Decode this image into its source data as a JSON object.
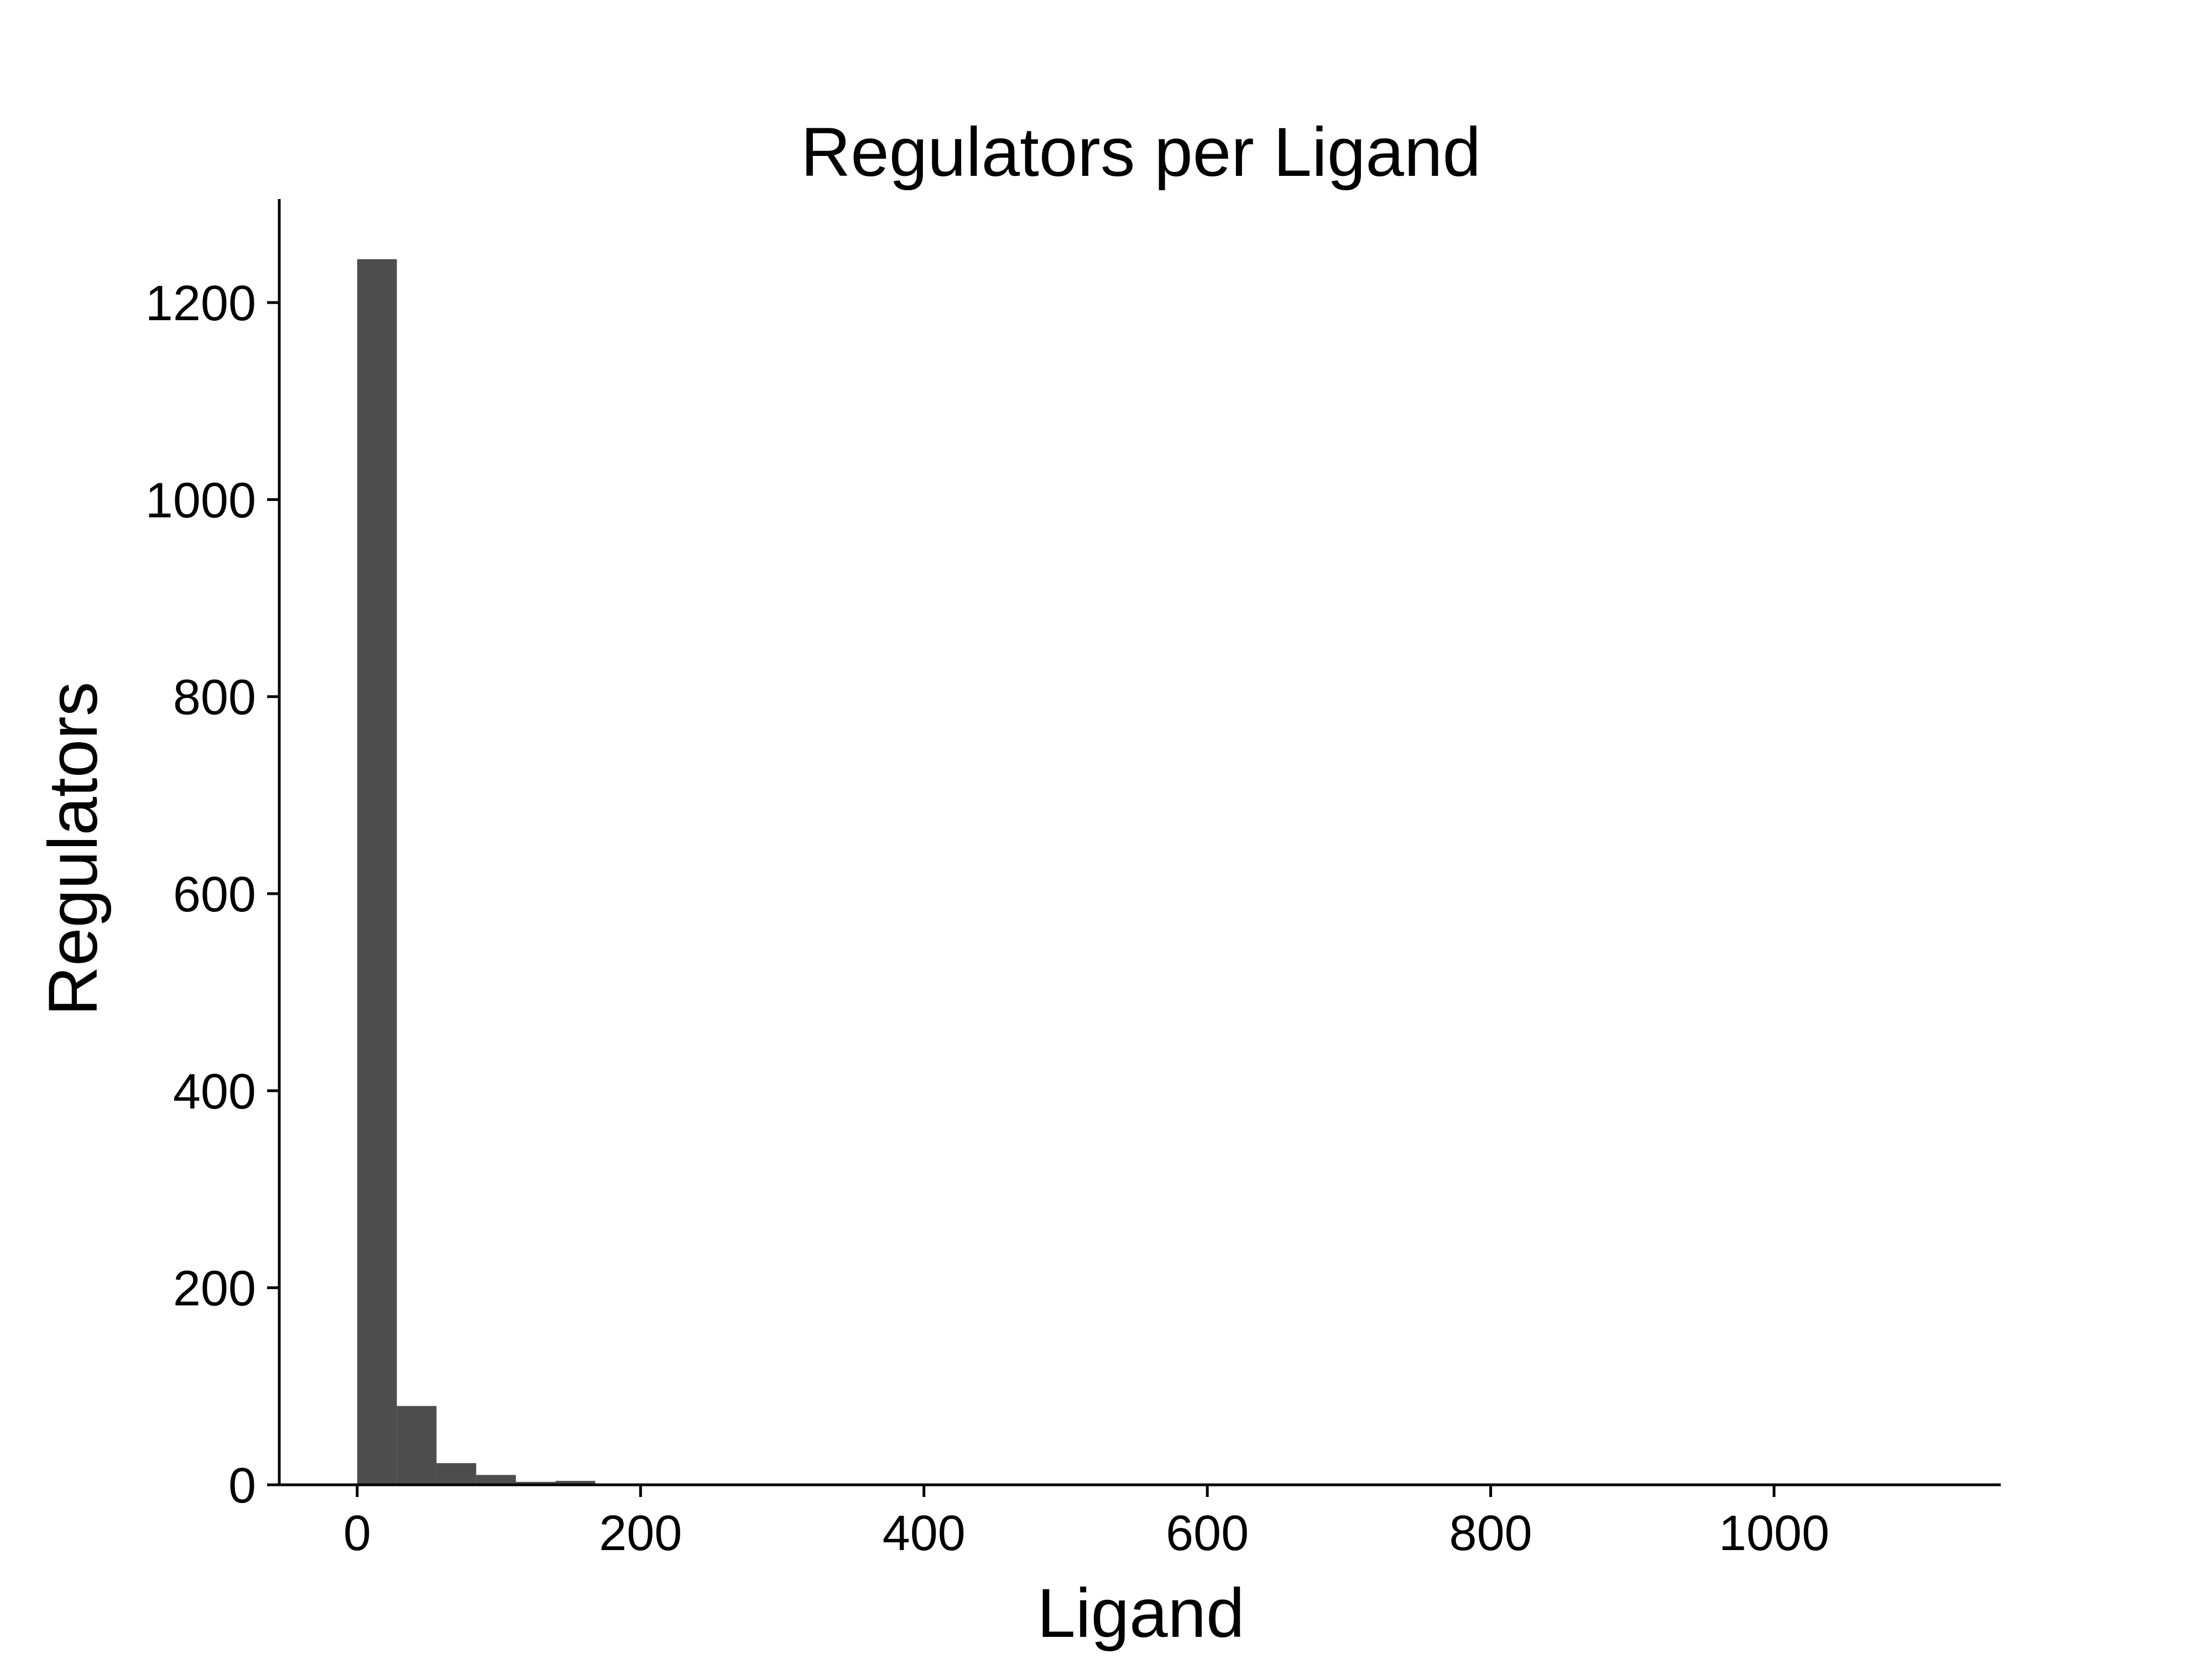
{
  "chart_data": {
    "type": "bar",
    "title": "Regulators per Ligand",
    "xlabel": "Ligand",
    "ylabel": "Regulators",
    "xlim": [
      -55,
      1160
    ],
    "ylim": [
      0,
      1305
    ],
    "x_ticks": [
      0,
      200,
      400,
      600,
      800,
      1000
    ],
    "y_ticks": [
      0,
      200,
      400,
      600,
      800,
      1000,
      1200
    ],
    "grid": false,
    "bar_color": "#4d4d4d",
    "bins": [
      {
        "x0": 0,
        "x1": 28,
        "value": 1244
      },
      {
        "x0": 28,
        "x1": 56,
        "value": 80
      },
      {
        "x0": 56,
        "x1": 84,
        "value": 22
      },
      {
        "x0": 84,
        "x1": 112,
        "value": 10
      },
      {
        "x0": 112,
        "x1": 140,
        "value": 3
      },
      {
        "x0": 140,
        "x1": 168,
        "value": 4
      },
      {
        "x0": 168,
        "x1": 196,
        "value": 1
      },
      {
        "x0": 196,
        "x1": 224,
        "value": 1
      },
      {
        "x0": 224,
        "x1": 252,
        "value": 1
      },
      {
        "x0": 252,
        "x1": 280,
        "value": 1
      },
      {
        "x0": 280,
        "x1": 308,
        "value": 1
      },
      {
        "x0": 308,
        "x1": 336,
        "value": 0
      },
      {
        "x0": 336,
        "x1": 364,
        "value": 0
      },
      {
        "x0": 364,
        "x1": 392,
        "value": 0
      },
      {
        "x0": 392,
        "x1": 420,
        "value": 0
      },
      {
        "x0": 420,
        "x1": 448,
        "value": 0
      },
      {
        "x0": 448,
        "x1": 476,
        "value": 0
      },
      {
        "x0": 476,
        "x1": 504,
        "value": 0
      },
      {
        "x0": 504,
        "x1": 532,
        "value": 0
      },
      {
        "x0": 532,
        "x1": 560,
        "value": 0
      },
      {
        "x0": 560,
        "x1": 588,
        "value": 0
      },
      {
        "x0": 588,
        "x1": 616,
        "value": 0
      },
      {
        "x0": 616,
        "x1": 644,
        "value": 0
      },
      {
        "x0": 644,
        "x1": 672,
        "value": 0
      },
      {
        "x0": 672,
        "x1": 700,
        "value": 0
      },
      {
        "x0": 700,
        "x1": 728,
        "value": 0
      },
      {
        "x0": 728,
        "x1": 756,
        "value": 0
      },
      {
        "x0": 756,
        "x1": 784,
        "value": 0
      },
      {
        "x0": 784,
        "x1": 812,
        "value": 0
      },
      {
        "x0": 812,
        "x1": 840,
        "value": 1
      },
      {
        "x0": 840,
        "x1": 868,
        "value": 0
      },
      {
        "x0": 868,
        "x1": 896,
        "value": 0
      },
      {
        "x0": 896,
        "x1": 924,
        "value": 0
      },
      {
        "x0": 924,
        "x1": 952,
        "value": 0
      },
      {
        "x0": 952,
        "x1": 980,
        "value": 0
      },
      {
        "x0": 980,
        "x1": 1008,
        "value": 0
      },
      {
        "x0": 1008,
        "x1": 1036,
        "value": 0
      },
      {
        "x0": 1036,
        "x1": 1064,
        "value": 0
      },
      {
        "x0": 1064,
        "x1": 1092,
        "value": 0
      },
      {
        "x0": 1092,
        "x1": 1120,
        "value": 1
      }
    ]
  }
}
